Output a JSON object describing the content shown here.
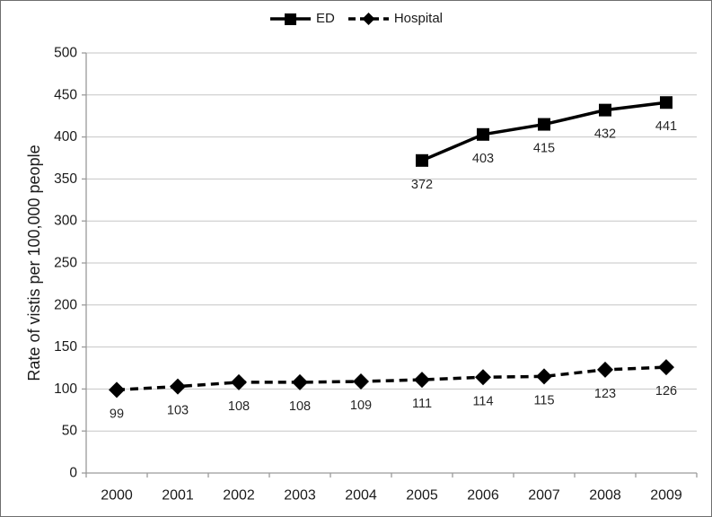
{
  "chart_data": {
    "type": "line",
    "title": "",
    "xlabel": "",
    "ylabel": "Rate of vistis per 100,000 people",
    "categories": [
      "2000",
      "2001",
      "2002",
      "2003",
      "2004",
      "2005",
      "2006",
      "2007",
      "2008",
      "2009"
    ],
    "series": [
      {
        "name": "ED",
        "marker": "square",
        "line_style": "solid",
        "color": "#000000",
        "values": [
          null,
          null,
          null,
          null,
          null,
          372,
          403,
          415,
          432,
          441
        ]
      },
      {
        "name": "Hospital",
        "marker": "diamond",
        "line_style": "dashed",
        "color": "#000000",
        "values": [
          99,
          103,
          108,
          108,
          109,
          111,
          114,
          115,
          123,
          126
        ]
      }
    ],
    "ylim": [
      0,
      500
    ],
    "ytick_step": 50,
    "grid": true,
    "data_labels": true,
    "legend_position": "top-center",
    "colors": {
      "gridline": "#c6c6c6",
      "axis": "#9a9a9a",
      "tick_label": "#1a1a1a",
      "data_label": "#262626",
      "series": "#000000",
      "background": "#ffffff"
    }
  }
}
